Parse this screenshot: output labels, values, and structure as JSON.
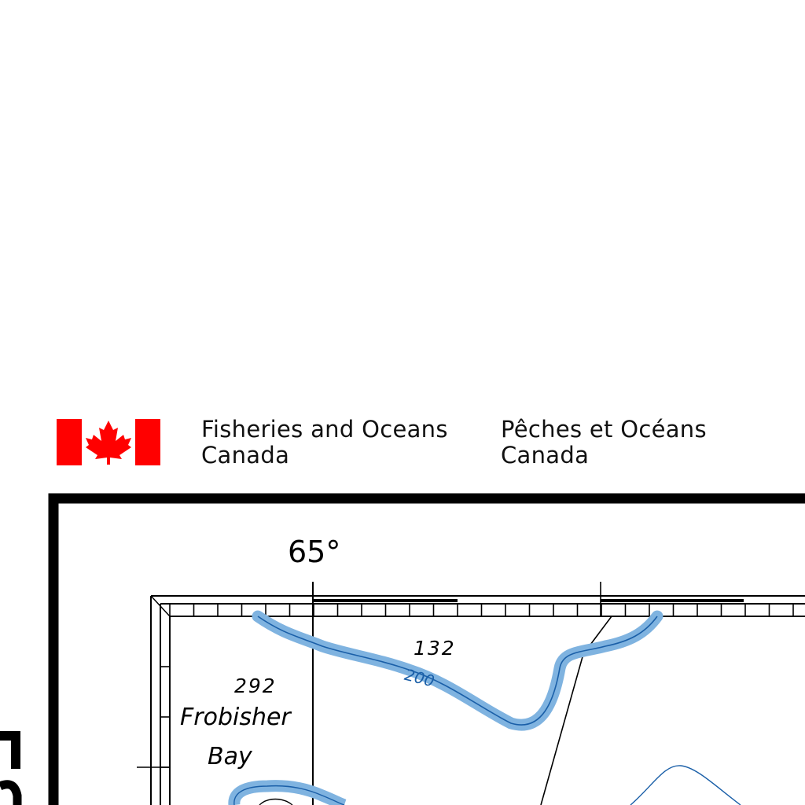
{
  "header": {
    "agency_en_line1": "Fisheries and Oceans",
    "agency_en_line2": "Canada",
    "agency_fr_line1": "Pêches et Océans",
    "agency_fr_line2": "Canada",
    "flag_red": "#ff0000",
    "flag_icon": "canada-flag-icon"
  },
  "map": {
    "longitude_label": "65°",
    "place_name_line1": "Frobisher",
    "place_name_line2": "Bay",
    "soundings": [
      "292",
      "132"
    ],
    "contour_label": "200",
    "contour_band_color": "#7fb3e0",
    "contour_line_color": "#1a5fa8"
  }
}
